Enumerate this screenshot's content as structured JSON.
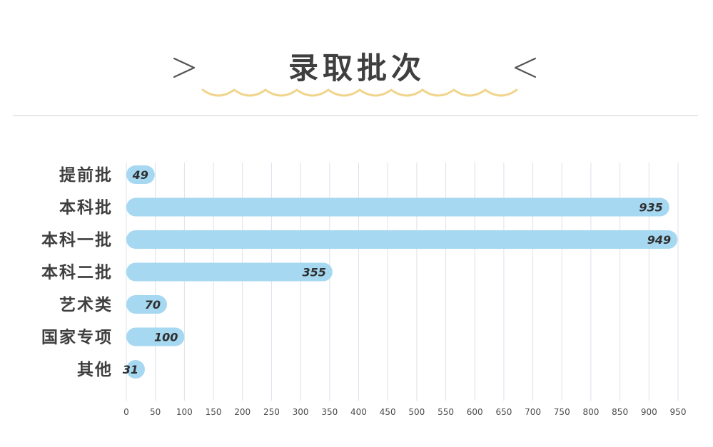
{
  "header": {
    "title": "录取批次"
  },
  "colors": {
    "bar": "#a6d8f1",
    "bar_text": "#2f2f2f",
    "grid": "#dde1ec",
    "title": "#3f3f3f",
    "wave": "#f1d58e",
    "chevron": "#555555"
  },
  "chart_data": {
    "type": "bar",
    "orientation": "horizontal",
    "title": "录取批次",
    "categories": [
      "提前批",
      "本科批",
      "本科一批",
      "本科二批",
      "艺术类",
      "国家专项",
      "其他"
    ],
    "values": [
      49,
      935,
      949,
      355,
      70,
      100,
      31
    ],
    "xlim": [
      0,
      950
    ],
    "xticks": [
      "0",
      "50",
      "100",
      "150",
      "200",
      "250",
      "300",
      "350",
      "400",
      "450",
      "500",
      "550",
      "600",
      "650",
      "700",
      "750",
      "800",
      "850",
      "900",
      "950"
    ],
    "grid": true,
    "data_labels": [
      "49",
      "935",
      "949",
      "355",
      "70",
      "100",
      "31"
    ]
  }
}
